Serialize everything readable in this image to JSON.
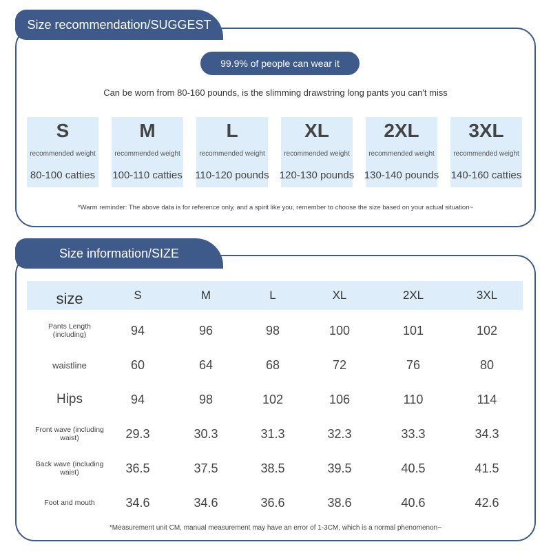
{
  "recommendation": {
    "title": "Size recommendation/SUGGEST",
    "badge": "99.9% of people can wear it",
    "subtitle": "Can be worn from 80-160 pounds, is the slimming drawstring long pants you can't miss",
    "sizes": [
      {
        "size": "S",
        "label": "recommended weight",
        "weight": "80-100 catties"
      },
      {
        "size": "M",
        "label": "recommended weight",
        "weight": "100-110 catties"
      },
      {
        "size": "L",
        "label": "recommended weight",
        "weight": "110-120 pounds"
      },
      {
        "size": "XL",
        "label": "recommended weight",
        "weight": "120-130 pounds"
      },
      {
        "size": "2XL",
        "label": "recommended weight",
        "weight": "130-140 pounds"
      },
      {
        "size": "3XL",
        "label": "recommended weight",
        "weight": "140-160 catties"
      }
    ],
    "note": "*Warm reminder: The above data is for reference only, and a spirit like you, remember to choose the size based on your actual situation~"
  },
  "information": {
    "title": "Size information/SIZE",
    "table": {
      "header": [
        "size",
        "S",
        "M",
        "L",
        "XL",
        "2XL",
        "3XL"
      ],
      "rows": [
        [
          "Pants Length (including)",
          "94",
          "96",
          "98",
          "100",
          "101",
          "102"
        ],
        [
          "waistline",
          "60",
          "64",
          "68",
          "72",
          "76",
          "80"
        ],
        [
          "Hips",
          "94",
          "98",
          "102",
          "106",
          "110",
          "114"
        ],
        [
          "Front wave (including waist)",
          "29.3",
          "30.3",
          "31.3",
          "32.3",
          "33.3",
          "34.3"
        ],
        [
          "Back wave (including waist)",
          "36.5",
          "37.5",
          "38.5",
          "39.5",
          "40.5",
          "41.5"
        ],
        [
          "Foot and mouth",
          "34.6",
          "34.6",
          "36.6",
          "38.6",
          "40.6",
          "42.6"
        ]
      ]
    },
    "note": "*Measurement unit CM, manual measurement may have an error of 1-3CM, which is a normal phenomenon~"
  }
}
